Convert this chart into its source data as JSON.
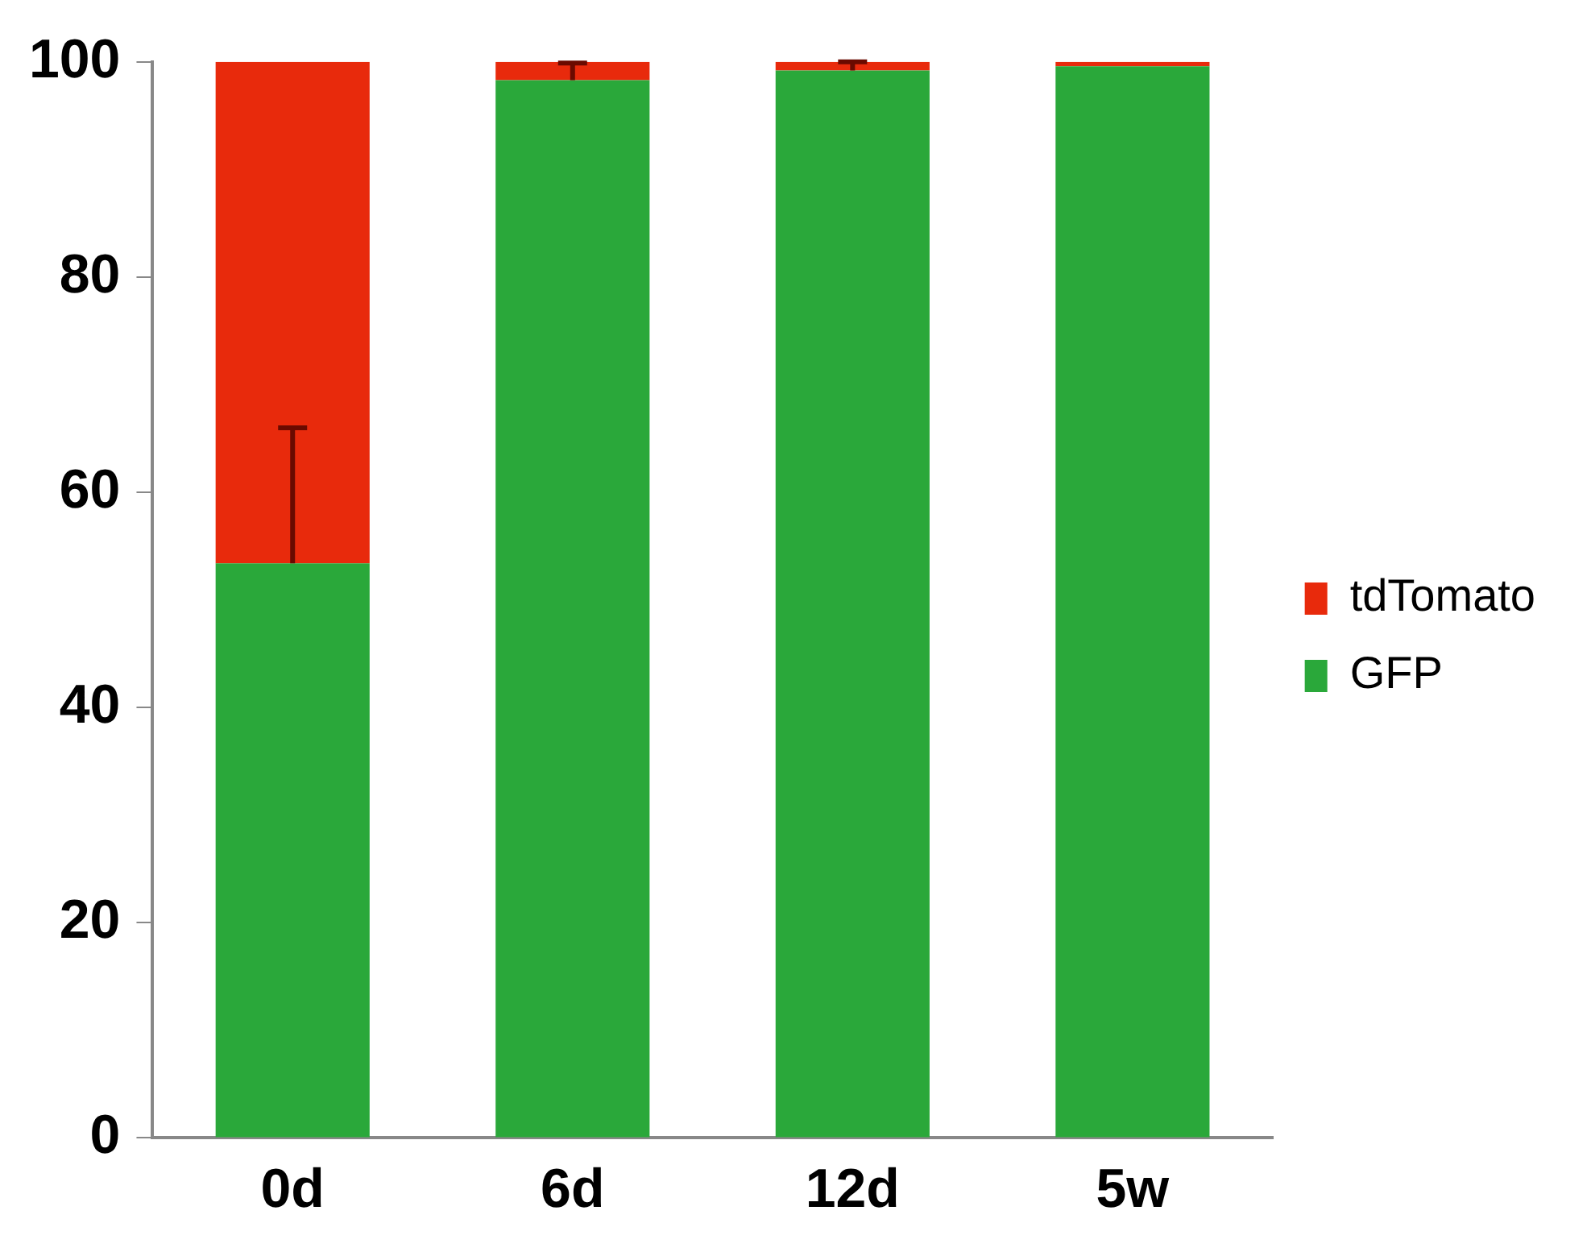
{
  "chart_data": {
    "type": "bar",
    "stacked": true,
    "categories": [
      "0d",
      "6d",
      "12d",
      "5w"
    ],
    "series": [
      {
        "name": "GFP",
        "color": "#2aa83a",
        "values": [
          53.4,
          98.3,
          99.2,
          99.6
        ],
        "errors": [
          [
            53.4,
            66
          ],
          [
            98.3,
            99.9
          ],
          [
            99.2,
            100
          ],
          null
        ]
      },
      {
        "name": "tdTomato",
        "color": "#e82a0c",
        "values": [
          46.6,
          1.7,
          0.8,
          0.4
        ]
      }
    ],
    "ylim": [
      0,
      100
    ],
    "yticks": [
      0,
      20,
      40,
      60,
      80,
      100
    ],
    "grid": false,
    "legend": "right"
  }
}
